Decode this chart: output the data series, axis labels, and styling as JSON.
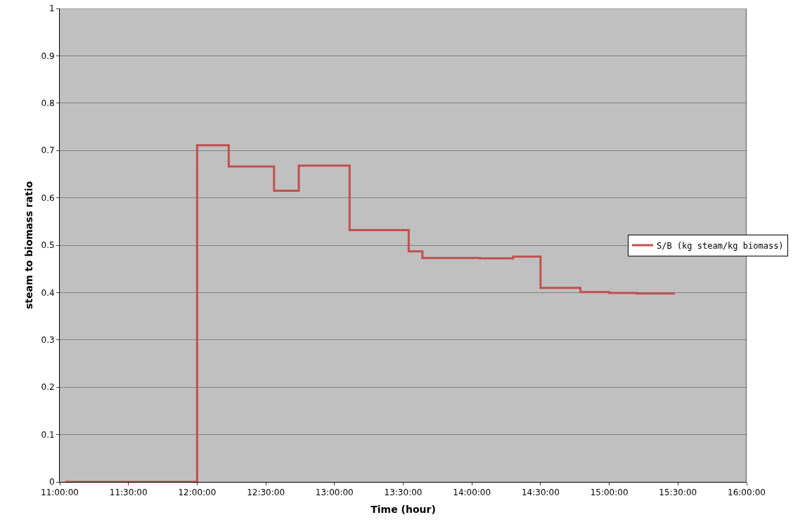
{
  "chart_data": {
    "type": "step",
    "xlabel": "Time (hour)",
    "ylabel": "steam to biomass ratio",
    "x": [
      11.04,
      12.0,
      12.23,
      12.56,
      12.74,
      13.11,
      13.54,
      13.64,
      13.9,
      14.06,
      14.3,
      14.5,
      14.79,
      15.0,
      15.2,
      15.47
    ],
    "series": [
      {
        "name": "S/B (kg steam/kg biomass)",
        "color": "#c0504d",
        "values": [
          0,
          0.711,
          0.666,
          0.615,
          0.668,
          0.532,
          0.487,
          0.473,
          0.473,
          0.472,
          0.476,
          0.41,
          0.401,
          0.399,
          0.398,
          0.399
        ]
      }
    ],
    "xlim": [
      11,
      16
    ],
    "xticks": [
      {
        "value": 11,
        "label": "11:00:00"
      },
      {
        "value": 11.5,
        "label": "11:30:00"
      },
      {
        "value": 12,
        "label": "12:00:00"
      },
      {
        "value": 12.5,
        "label": "12:30:00"
      },
      {
        "value": 13,
        "label": "13:00:00"
      },
      {
        "value": 13.5,
        "label": "13:30:00"
      },
      {
        "value": 14,
        "label": "14:00:00"
      },
      {
        "value": 14.5,
        "label": "14:30:00"
      },
      {
        "value": 15,
        "label": "15:00:00"
      },
      {
        "value": 15.5,
        "label": "15:30:00"
      },
      {
        "value": 16,
        "label": "16:00:00"
      }
    ],
    "ylim": [
      0,
      1
    ],
    "yticks": [
      0,
      0.1,
      0.2,
      0.3,
      0.4,
      0.5,
      0.6,
      0.7,
      0.8,
      0.9,
      1
    ],
    "grid": "y",
    "legend": "right",
    "marker": "none",
    "line_style": "solid"
  }
}
